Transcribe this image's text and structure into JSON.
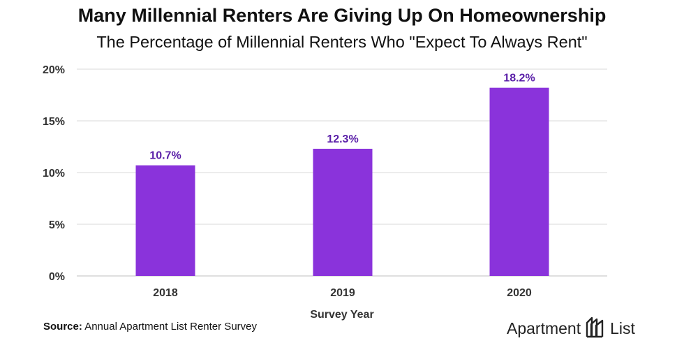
{
  "chart_data": {
    "type": "bar",
    "title": "Many Millennial Renters Are Giving Up On Homeownership",
    "subtitle": "The Percentage of Millennial Renters Who \"Expect To Always Rent\"",
    "xlabel": "Survey Year",
    "ylabel": "",
    "categories": [
      "2018",
      "2019",
      "2020"
    ],
    "values": [
      10.7,
      12.3,
      18.2
    ],
    "data_labels": [
      "10.7%",
      "12.3%",
      "18.2%"
    ],
    "ylim": [
      0,
      20
    ],
    "yticks": [
      0,
      5,
      10,
      15,
      20
    ],
    "ytick_labels": [
      "0%",
      "5%",
      "10%",
      "15%",
      "20%"
    ],
    "grid": true,
    "bar_color": "#8a33db",
    "label_color": "#5a1fa8"
  },
  "source": {
    "label": "Source:",
    "text": " Annual Apartment List Renter Survey"
  },
  "logo": {
    "left_word": "Apartment",
    "right_word": "List",
    "icon": "apartment-list-logo-icon"
  }
}
